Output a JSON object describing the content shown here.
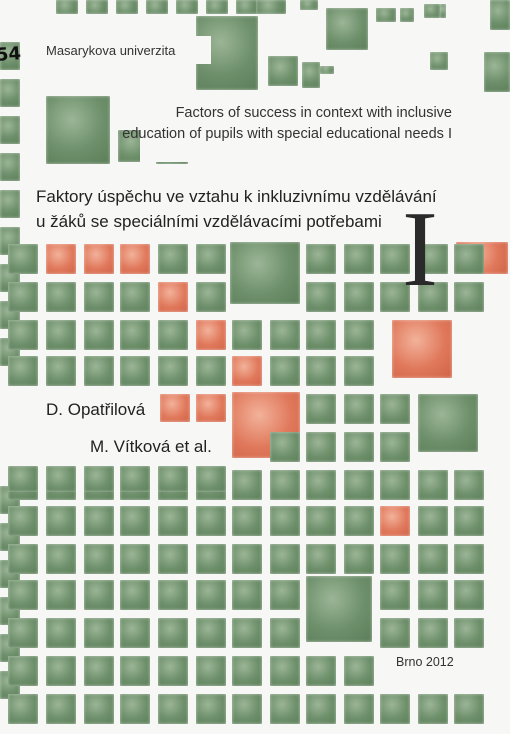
{
  "publisher": "Masarykova univerzita",
  "title_en": "Factors of success in context with inclusive education of pupils with special educational needs I",
  "title_cz_line1": "Faktory úspěchu ve vztahu k inkluzivnímu vzdělávání",
  "title_cz_line2": "u žáků se speciálními vzdělávacími potřebami",
  "volume": "I",
  "author1": "D. Opatřilová",
  "author2": "M. Vítková et al.",
  "place_year": "Brno 2012",
  "handwritten_mark": "54",
  "colors": {
    "green": "#6d8f6a",
    "orange": "#e0785b",
    "background": "#f7f7f5"
  }
}
